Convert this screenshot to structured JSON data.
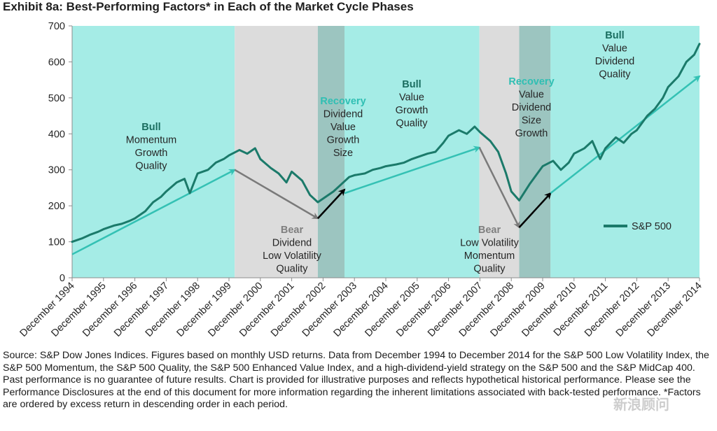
{
  "title": "Exhibit 8a: Best-Performing Factors* in Each of the Market Cycle Phases",
  "chart_data": {
    "type": "line",
    "title": "Exhibit 8a: Best-Performing Factors* in Each of the Market Cycle Phases",
    "xlabel": "",
    "ylabel": "",
    "ylim": [
      0,
      700
    ],
    "yticks": [
      0,
      100,
      200,
      300,
      400,
      500,
      600,
      700
    ],
    "xlim": [
      1994.917,
      2014.917
    ],
    "x_tick_labels": [
      "December 1994",
      "December 1995",
      "December 1996",
      "December 1997",
      "December 1998",
      "December 1999",
      "December 2000",
      "December 2001",
      "December 2002",
      "December 2003",
      "December 2004",
      "December 2005",
      "December 2006",
      "December 2007",
      "December 2008",
      "December 2009",
      "December 2010",
      "December 2011",
      "December 2012",
      "December 2013",
      "December 2014"
    ],
    "x_tick_values": [
      1994.917,
      1995.917,
      1996.917,
      1997.917,
      1998.917,
      1999.917,
      2000.917,
      2001.917,
      2002.917,
      2003.917,
      2004.917,
      2005.917,
      2006.917,
      2007.917,
      2008.917,
      2009.917,
      2010.917,
      2011.917,
      2012.917,
      2013.917,
      2014.917
    ],
    "legend": {
      "position": "right-middle",
      "entries": [
        "S&P 500"
      ]
    },
    "series": [
      {
        "name": "S&P 500",
        "color": "#1b7a6a",
        "x": [
          1994.917,
          1995.25,
          1995.5,
          1995.75,
          1995.917,
          1996.25,
          1996.5,
          1996.75,
          1996.917,
          1997.25,
          1997.5,
          1997.75,
          1997.917,
          1998.25,
          1998.5,
          1998.67,
          1998.917,
          1999.25,
          1999.5,
          1999.75,
          1999.917,
          2000.25,
          2000.5,
          2000.75,
          2000.917,
          2001.25,
          2001.5,
          2001.75,
          2001.917,
          2002.25,
          2002.5,
          2002.75,
          2002.917,
          2003.25,
          2003.5,
          2003.75,
          2003.917,
          2004.25,
          2004.5,
          2004.75,
          2004.917,
          2005.25,
          2005.5,
          2005.75,
          2005.917,
          2006.25,
          2006.5,
          2006.75,
          2006.917,
          2007.25,
          2007.5,
          2007.75,
          2007.917,
          2008.25,
          2008.5,
          2008.75,
          2008.917,
          2009.17,
          2009.5,
          2009.75,
          2009.917,
          2010.25,
          2010.5,
          2010.75,
          2010.917,
          2011.25,
          2011.5,
          2011.75,
          2011.917,
          2012.25,
          2012.5,
          2012.75,
          2012.917,
          2013.25,
          2013.5,
          2013.75,
          2013.917,
          2014.25,
          2014.5,
          2014.75,
          2014.917
        ],
        "values": [
          100,
          110,
          120,
          128,
          135,
          145,
          150,
          158,
          165,
          185,
          210,
          225,
          240,
          265,
          275,
          235,
          290,
          300,
          320,
          330,
          340,
          355,
          345,
          360,
          330,
          305,
          290,
          265,
          295,
          270,
          230,
          210,
          220,
          240,
          260,
          280,
          285,
          290,
          300,
          305,
          310,
          315,
          320,
          330,
          335,
          345,
          350,
          375,
          395,
          410,
          400,
          420,
          405,
          380,
          350,
          290,
          240,
          215,
          260,
          290,
          310,
          325,
          300,
          320,
          345,
          360,
          380,
          330,
          360,
          390,
          375,
          400,
          410,
          450,
          470,
          500,
          530,
          560,
          600,
          620,
          650
        ]
      }
    ],
    "phases": [
      {
        "type": "Bull",
        "factors": [
          "Momentum",
          "Growth",
          "Quality"
        ],
        "start": 1994.917,
        "end": 2000.1,
        "arrow_from": [
          1994.917,
          65
        ],
        "arrow_to": [
          2000.1,
          300
        ]
      },
      {
        "type": "Bear",
        "factors": [
          "Dividend",
          "Low Volatility",
          "Quality"
        ],
        "start": 2000.1,
        "end": 2002.75,
        "arrow_from": [
          2000.1,
          300
        ],
        "arrow_to": [
          2002.75,
          165
        ]
      },
      {
        "type": "Recovery",
        "factors": [
          "Dividend",
          "Value",
          "Growth",
          "Size"
        ],
        "start": 2002.75,
        "end": 2003.6,
        "arrow_from": [
          2002.75,
          165
        ],
        "arrow_to": [
          2003.6,
          245
        ]
      },
      {
        "type": "Bull",
        "factors": [
          "Value",
          "Growth",
          "Quality"
        ],
        "start": 2003.6,
        "end": 2007.9,
        "arrow_from": [
          2003.6,
          235
        ],
        "arrow_to": [
          2007.9,
          362
        ]
      },
      {
        "type": "Bear",
        "factors": [
          "Low Volatility",
          "Momentum",
          "Quality"
        ],
        "start": 2007.9,
        "end": 2009.17,
        "arrow_from": [
          2007.9,
          362
        ],
        "arrow_to": [
          2009.17,
          140
        ]
      },
      {
        "type": "Recovery",
        "factors": [
          "Value",
          "Dividend",
          "Size",
          "Growth"
        ],
        "start": 2009.17,
        "end": 2010.17,
        "arrow_from": [
          2009.17,
          140
        ],
        "arrow_to": [
          2010.17,
          235
        ]
      },
      {
        "type": "Bull",
        "factors": [
          "Value",
          "Dividend",
          "Quality"
        ],
        "start": 2010.17,
        "end": 2014.917,
        "arrow_from": [
          2010.17,
          235
        ],
        "arrow_to": [
          2014.917,
          560
        ]
      }
    ],
    "colors": {
      "bull_band": "#a5ece6",
      "bear_band": "#dcdcdc",
      "recovery_band": "#9cc5c0",
      "bull_arrow": "#34c1b4",
      "bear_arrow": "#7a7a7a",
      "recovery_arrow": "#000000",
      "line": "#1b7a6a"
    }
  },
  "source_note": "Source: S&P Dow Jones Indices.  Figures based on monthly USD returns.  Data from December 1994 to December 2014 for the S&P 500 Low Volatility Index, the S&P 500 Momentum, the S&P 500 Quality, the S&P 500 Enhanced Value Index, and a high-dividend-yield strategy on the S&P 500 and the S&P MidCap 400.  Past performance is no guarantee of future results.  Chart is provided for illustrative purposes and reflects hypothetical historical performance.  Please see the Performance Disclosures at the end of this document for more information regarding the inherent limitations associated with back-tested performance.  *Factors are ordered by excess return in descending order in each period.",
  "watermark": "新浪顾问"
}
